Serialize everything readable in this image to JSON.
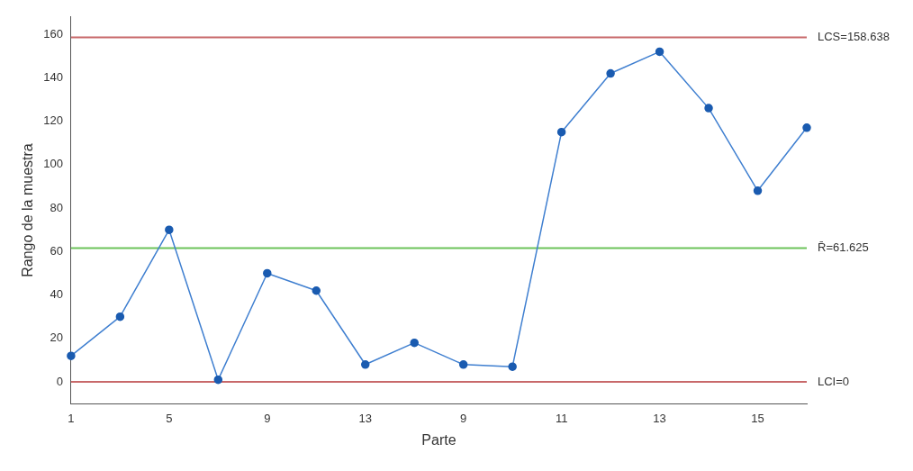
{
  "chart_data": {
    "type": "line",
    "xlabel": "Parte",
    "ylabel": "Rango de la muestra",
    "categories": [
      "1",
      null,
      "5",
      null,
      "9",
      null,
      "13",
      null,
      "9",
      null,
      "11",
      null,
      "13",
      null,
      "15",
      null
    ],
    "series": [
      {
        "color": "#3f7fd0",
        "values": [
          12,
          30,
          70,
          1,
          50,
          42,
          8,
          18,
          8,
          7,
          115,
          142,
          152,
          126,
          88,
          117
        ]
      }
    ],
    "ylim": [
      -10,
      168
    ],
    "yticks": [
      0,
      20,
      40,
      60,
      80,
      100,
      120,
      140,
      160
    ],
    "ref_lines": [
      {
        "axis": "y",
        "value": 158.638,
        "label": "LCS=158.638",
        "color": "#c8696a"
      },
      {
        "axis": "y",
        "value": 61.625,
        "label": "R̄=61.625",
        "color": "#6cc35a"
      },
      {
        "axis": "y",
        "value": 0,
        "label": "LCI=0",
        "color": "#c8696a"
      }
    ],
    "marker": "circle",
    "line_style": "solid",
    "grid": false,
    "legend": false
  }
}
